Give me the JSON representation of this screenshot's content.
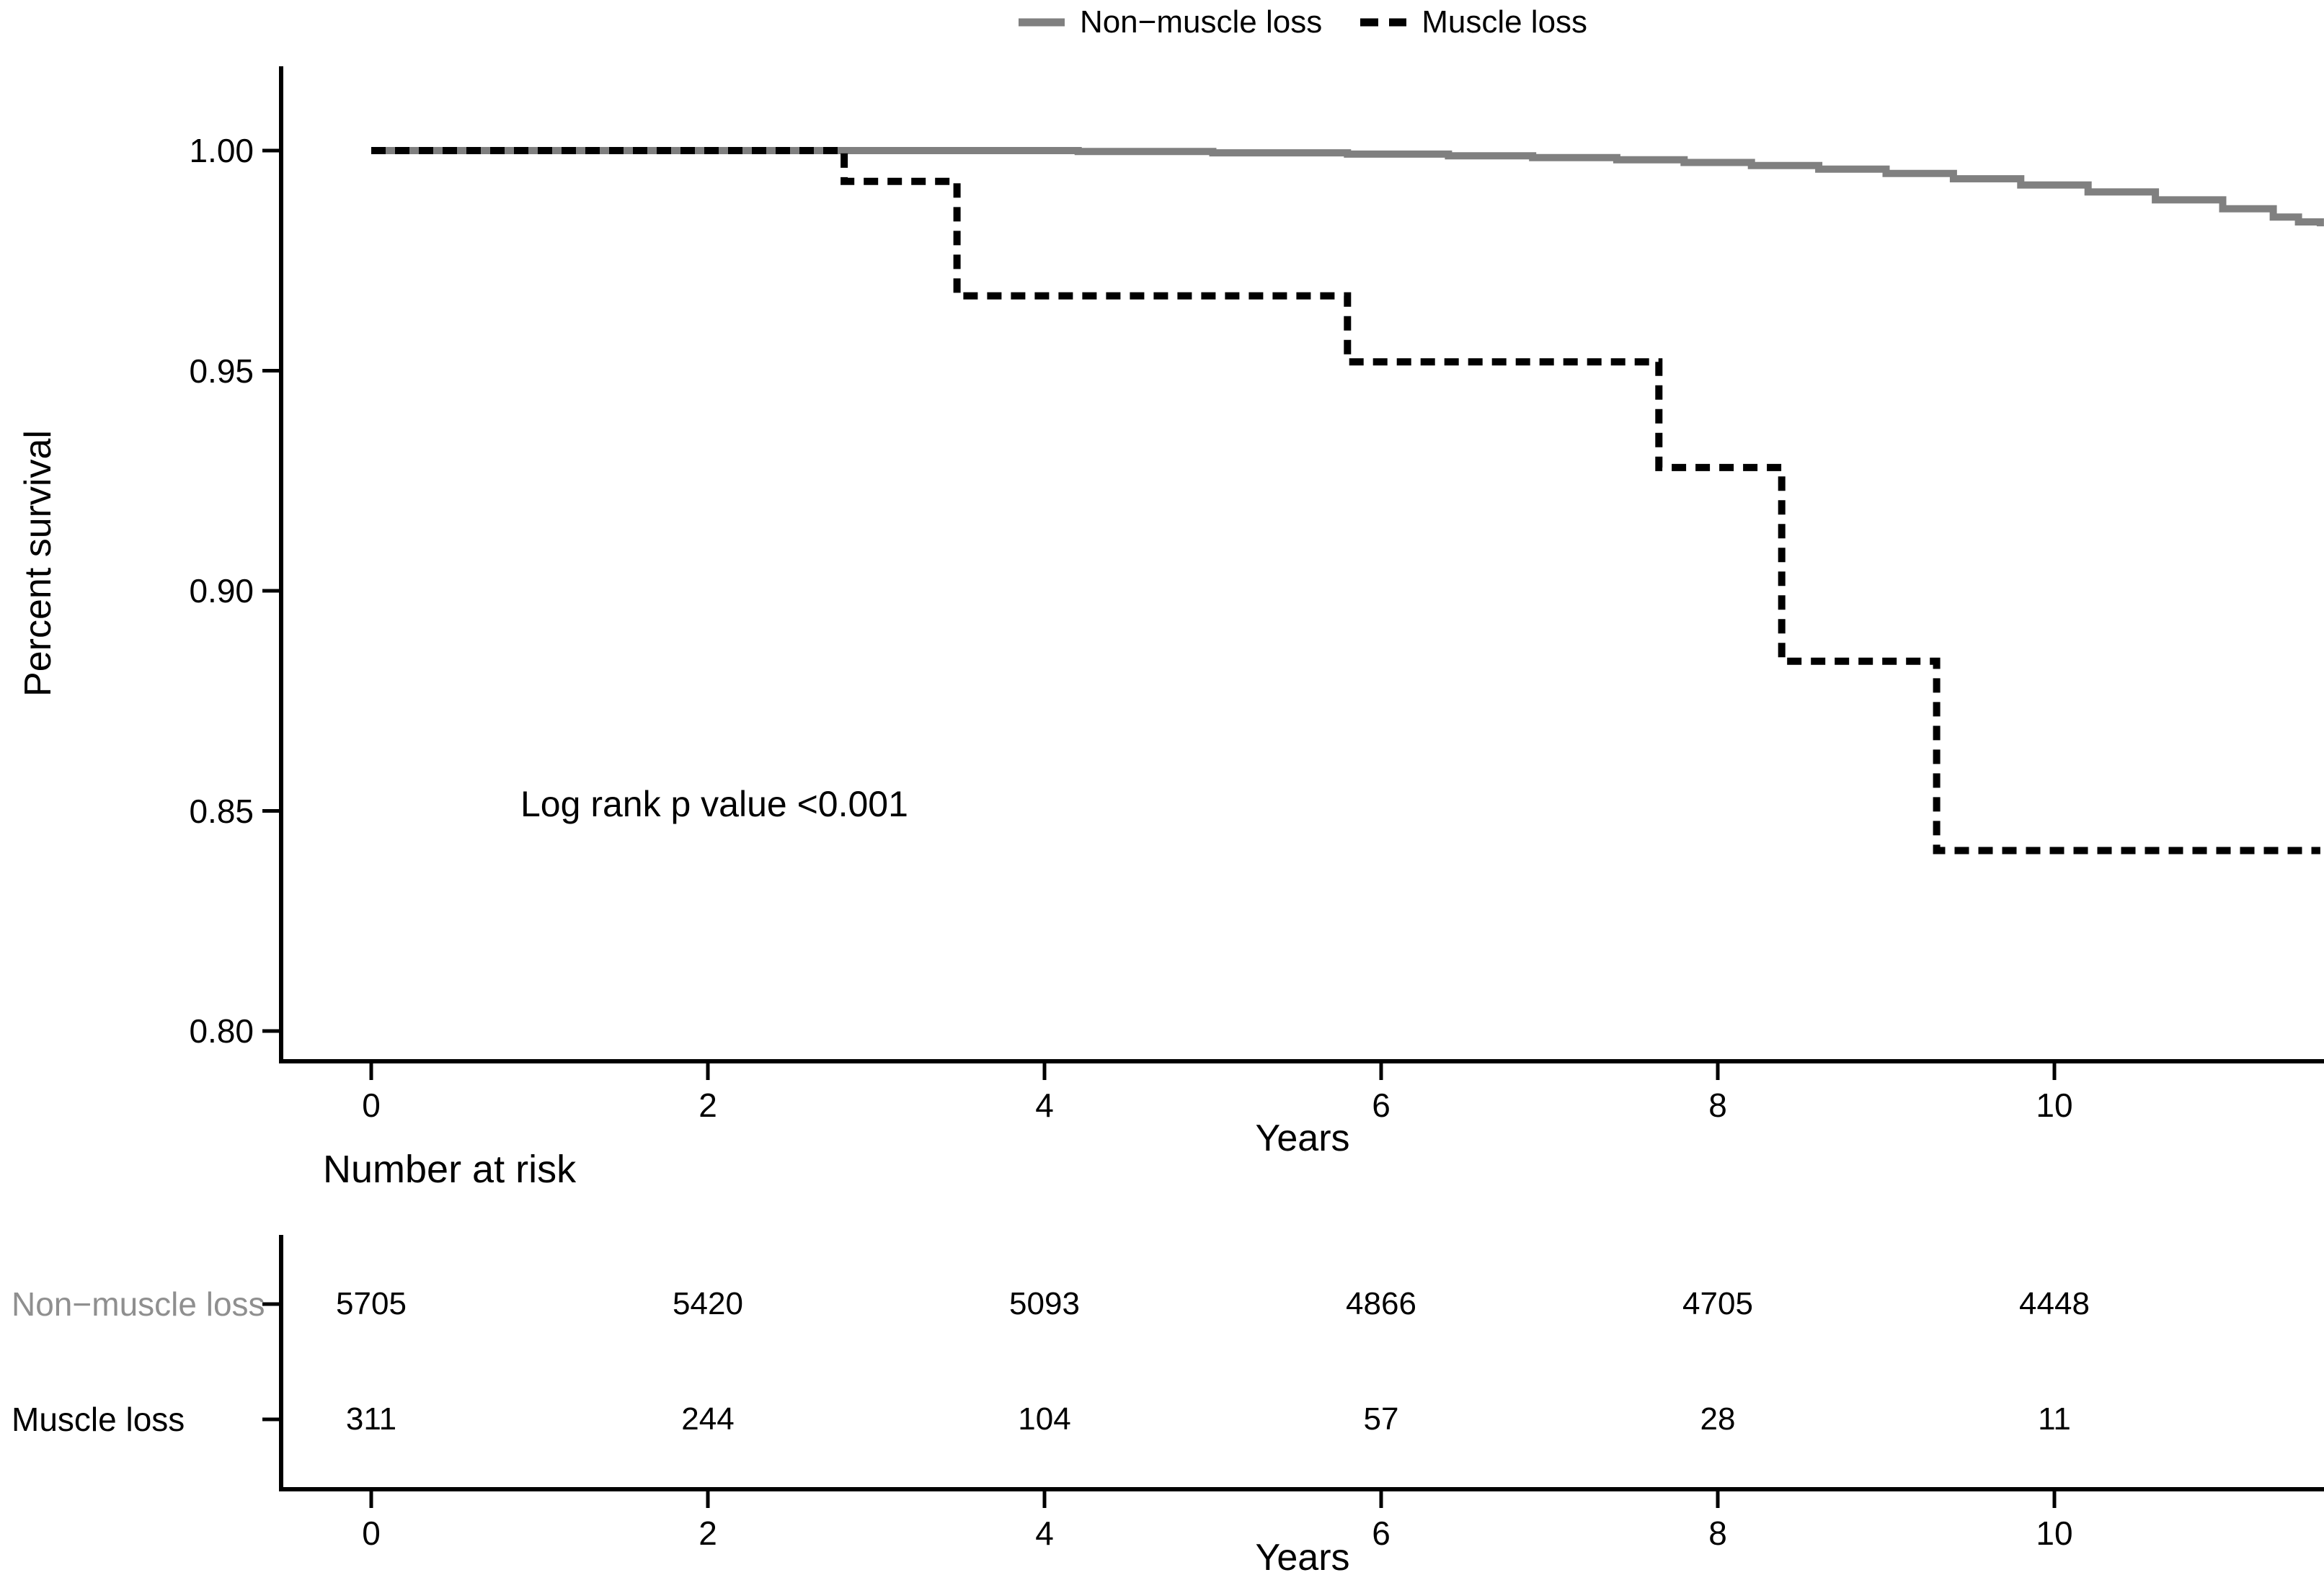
{
  "figure": {
    "background": "#ffffff",
    "text_color": "#000000"
  },
  "chart_data": {
    "type": "line",
    "subtype": "kaplan-meier-step",
    "title": "",
    "xlabel": "Years",
    "ylabel": "Percent survival",
    "xlim": [
      -0.54,
      11.58
    ],
    "ylim": [
      0.7935,
      1.0195
    ],
    "grid": false,
    "legend_position": "top-center",
    "annotation": "Log rank p value <0.001",
    "x_ticks": [
      {
        "value": 0,
        "label": "0"
      },
      {
        "value": 2,
        "label": "2"
      },
      {
        "value": 4,
        "label": "4"
      },
      {
        "value": 6,
        "label": "6"
      },
      {
        "value": 8,
        "label": "8"
      },
      {
        "value": 10,
        "label": "10"
      }
    ],
    "y_ticks": [
      {
        "value": 1.0,
        "label": "1.00"
      },
      {
        "value": 0.95,
        "label": "0.95"
      },
      {
        "value": 0.9,
        "label": "0.90"
      },
      {
        "value": 0.85,
        "label": "0.85"
      },
      {
        "value": 0.8,
        "label": "0.80"
      }
    ],
    "legend": {
      "items": [
        {
          "label": "Non−muscle loss"
        },
        {
          "label": "Muscle loss"
        }
      ]
    },
    "series": [
      {
        "name": "Non−muscle loss",
        "style": "solid",
        "color": "#808080",
        "points": [
          [
            0,
            1.0
          ],
          [
            4.2,
            0.9998
          ],
          [
            5.0,
            0.9995
          ],
          [
            5.8,
            0.9992
          ],
          [
            6.4,
            0.9988
          ],
          [
            6.9,
            0.9984
          ],
          [
            7.4,
            0.9979
          ],
          [
            7.8,
            0.9973
          ],
          [
            8.2,
            0.9966
          ],
          [
            8.6,
            0.9958
          ],
          [
            9.0,
            0.9948
          ],
          [
            9.4,
            0.9936
          ],
          [
            9.8,
            0.9922
          ],
          [
            10.2,
            0.9906
          ],
          [
            10.6,
            0.9888
          ],
          [
            11.0,
            0.9868
          ],
          [
            11.3,
            0.9849
          ],
          [
            11.45,
            0.9838
          ],
          [
            11.58,
            0.9828
          ]
        ]
      },
      {
        "name": "Muscle loss",
        "style": "dashed",
        "color": "#000000",
        "points": [
          [
            0,
            1.0
          ],
          [
            2.81,
            0.993
          ],
          [
            3.48,
            0.967
          ],
          [
            5.8,
            0.952
          ],
          [
            7.65,
            0.928
          ],
          [
            8.38,
            0.884
          ],
          [
            9.3,
            0.841
          ],
          [
            11.58,
            0.841
          ]
        ]
      }
    ],
    "risk_table": {
      "title": "Number at risk",
      "xlabel": "Years",
      "x_ticks": [
        {
          "value": 0,
          "label": "0"
        },
        {
          "value": 2,
          "label": "2"
        },
        {
          "value": 4,
          "label": "4"
        },
        {
          "value": 6,
          "label": "6"
        },
        {
          "value": 8,
          "label": "8"
        },
        {
          "value": 10,
          "label": "10"
        }
      ],
      "rows": [
        {
          "label": "Non−muscle loss",
          "color": "#8f8f8f",
          "values": [
            "5705",
            "5420",
            "5093",
            "4866",
            "4705",
            "4448"
          ]
        },
        {
          "label": "Muscle loss",
          "color": "#000000",
          "values": [
            "311",
            "244",
            "104",
            "57",
            "28",
            "11"
          ]
        }
      ]
    }
  }
}
